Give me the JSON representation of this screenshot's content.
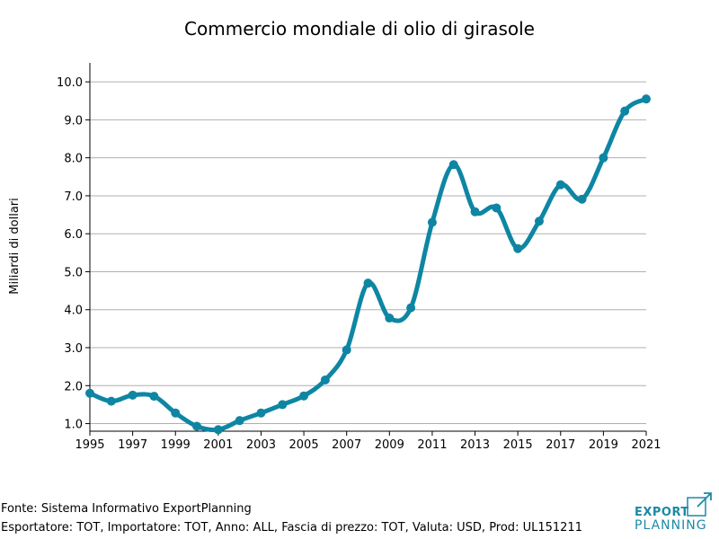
{
  "page": {
    "title": "Commercio mondiale di olio di girasole"
  },
  "chart_data": {
    "type": "line",
    "title": "Commercio mondiale di olio di girasole",
    "xlabel": "",
    "ylabel": "Miliardi di dollari",
    "x": [
      1995,
      1996,
      1997,
      1998,
      1999,
      2000,
      2001,
      2002,
      2003,
      2004,
      2005,
      2006,
      2007,
      2008,
      2009,
      2010,
      2011,
      2012,
      2013,
      2014,
      2015,
      2016,
      2017,
      2018,
      2019,
      2020,
      2021
    ],
    "series": [
      {
        "values": [
          1.8,
          1.59,
          1.75,
          1.72,
          1.28,
          0.93,
          0.84,
          1.08,
          1.28,
          1.5,
          1.73,
          2.15,
          2.94,
          4.7,
          3.78,
          4.05,
          6.3,
          7.82,
          6.58,
          6.68,
          5.61,
          6.33,
          7.29,
          6.91,
          8.0,
          9.23,
          9.55
        ],
        "color": "#0e86a3"
      }
    ],
    "xticks": [
      "1995",
      "1997",
      "1999",
      "2001",
      "2003",
      "2005",
      "2007",
      "2009",
      "2011",
      "2013",
      "2015",
      "2017",
      "2019",
      "2021"
    ],
    "yticks": [
      "1.0",
      "2.0",
      "3.0",
      "4.0",
      "5.0",
      "6.0",
      "7.0",
      "8.0",
      "9.0",
      "10.0"
    ],
    "xlim": [
      1995,
      2021
    ],
    "ylim": [
      0.8,
      10.5
    ],
    "grid": "horizontal"
  },
  "footer": {
    "source": "Fonte: Sistema Informativo ExportPlanning",
    "details": "Esportatore: TOT, Importatore: TOT, Anno: ALL, Fascia di prezzo: TOT, Valuta: USD, Prod: UL151211"
  },
  "logo": {
    "line1": "EXPORT",
    "line2": "PLANNING",
    "color": "#1a8aa6"
  }
}
